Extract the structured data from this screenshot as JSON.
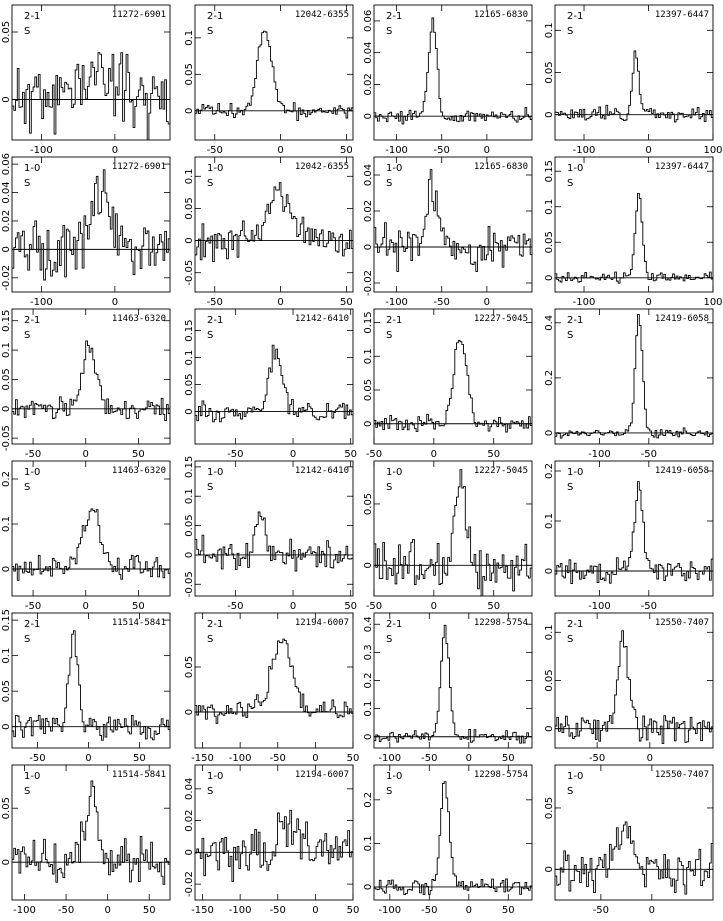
{
  "chart_data": [
    {
      "type": "line",
      "source": "11272-6901",
      "transition": "2-1",
      "flag": "S",
      "xlim": [
        -140,
        75
      ],
      "ylim": [
        -0.03,
        0.07
      ],
      "xticks": [
        -100,
        0
      ],
      "yticks": [
        0,
        0.05
      ],
      "peak": {
        "center": -20,
        "width": 60,
        "amp": 0.02
      },
      "noise": 0.018,
      "seed": 11
    },
    {
      "type": "line",
      "source": "12042-6355",
      "transition": "2-1",
      "flag": "S",
      "xlim": [
        -65,
        55
      ],
      "ylim": [
        -0.04,
        0.145
      ],
      "xticks": [
        -50,
        0,
        50
      ],
      "yticks": [
        0,
        0.05,
        0.1
      ],
      "peak": {
        "center": -12,
        "width": 12,
        "amp": 0.11
      },
      "noise": 0.007,
      "seed": 12
    },
    {
      "type": "line",
      "source": "12165-6830",
      "transition": "2-1",
      "flag": "S",
      "xlim": [
        -125,
        50
      ],
      "ylim": [
        -0.015,
        0.07
      ],
      "xticks": [
        -100,
        -50,
        0
      ],
      "yticks": [
        0,
        0.02,
        0.04,
        0.06
      ],
      "peak": {
        "center": -60,
        "width": 10,
        "amp": 0.06
      },
      "noise": 0.003,
      "seed": 13
    },
    {
      "type": "line",
      "source": "12397-6447",
      "transition": "2-1",
      "flag": "S",
      "xlim": [
        -145,
        100
      ],
      "ylim": [
        -0.03,
        0.13
      ],
      "xticks": [
        -100,
        0,
        100
      ],
      "yticks": [
        0,
        0.05,
        0.1
      ],
      "peak": {
        "center": -20,
        "width": 12,
        "amp": 0.07
      },
      "noise": 0.006,
      "seed": 14
    },
    {
      "type": "line",
      "source": "11272-6901",
      "transition": "1-0",
      "flag": "S",
      "xlim": [
        -140,
        75
      ],
      "ylim": [
        -0.03,
        0.065
      ],
      "xticks": [
        -100,
        0
      ],
      "yticks": [
        -0.02,
        0,
        0.02,
        0.04,
        0.06
      ],
      "peak": {
        "center": -20,
        "width": 30,
        "amp": 0.04
      },
      "noise": 0.013,
      "seed": 21
    },
    {
      "type": "line",
      "source": "12042-6355",
      "transition": "1-0",
      "flag": "S",
      "xlim": [
        -65,
        55
      ],
      "ylim": [
        -0.08,
        0.13
      ],
      "xticks": [
        -50,
        0,
        50
      ],
      "yticks": [
        -0.05,
        0,
        0.05,
        0.1
      ],
      "peak": {
        "center": 0,
        "width": 22,
        "amp": 0.07
      },
      "noise": 0.018,
      "seed": 22
    },
    {
      "type": "line",
      "source": "12165-6830",
      "transition": "1-0",
      "flag": "S",
      "xlim": [
        -125,
        50
      ],
      "ylim": [
        -0.025,
        0.05
      ],
      "xticks": [
        -100,
        -50,
        0
      ],
      "yticks": [
        -0.02,
        0,
        0.02,
        0.04
      ],
      "peak": {
        "center": -60,
        "width": 14,
        "amp": 0.033
      },
      "noise": 0.008,
      "seed": 23
    },
    {
      "type": "line",
      "source": "12397-6447",
      "transition": "1-0",
      "flag": "S",
      "xlim": [
        -145,
        100
      ],
      "ylim": [
        -0.02,
        0.17
      ],
      "xticks": [
        -100,
        0,
        100
      ],
      "yticks": [
        0,
        0.05,
        0.1,
        0.15
      ],
      "peak": {
        "center": -15,
        "width": 12,
        "amp": 0.12
      },
      "noise": 0.005,
      "seed": 24
    },
    {
      "type": "line",
      "source": "11463-6320",
      "transition": "2-1",
      "flag": "S",
      "xlim": [
        -70,
        80
      ],
      "ylim": [
        -0.06,
        0.17
      ],
      "xticks": [
        -50,
        0,
        50
      ],
      "yticks": [
        -0.05,
        0,
        0.05,
        0.1,
        0.15
      ],
      "peak": {
        "center": 3,
        "width": 14,
        "amp": 0.11
      },
      "noise": 0.012,
      "seed": 31
    },
    {
      "type": "line",
      "source": "12142-6410",
      "transition": "2-1",
      "flag": "S",
      "xlim": [
        -85,
        52
      ],
      "ylim": [
        -0.06,
        0.19
      ],
      "xticks": [
        -50,
        0,
        50
      ],
      "yticks": [
        0,
        0.05,
        0.1,
        0.15
      ],
      "peak": {
        "center": -15,
        "width": 12,
        "amp": 0.12
      },
      "noise": 0.012,
      "seed": 32
    },
    {
      "type": "line",
      "source": "12227-5045",
      "transition": "2-1",
      "flag": "S",
      "xlim": [
        -50,
        82
      ],
      "ylim": [
        -0.03,
        0.17
      ],
      "xticks": [
        -50,
        0,
        50
      ],
      "yticks": [
        0,
        0.05,
        0.1,
        0.15
      ],
      "peak": {
        "center": 22,
        "width": 12,
        "amp": 0.13
      },
      "noise": 0.008,
      "seed": 33
    },
    {
      "type": "line",
      "source": "12419-6058",
      "transition": "2-1",
      "flag": "S",
      "xlim": [
        -145,
        15
      ],
      "ylim": [
        -0.04,
        0.45
      ],
      "xticks": [
        -100,
        -50
      ],
      "yticks": [
        0,
        0.2,
        0.4
      ],
      "peak": {
        "center": -60,
        "width": 8,
        "amp": 0.42
      },
      "noise": 0.012,
      "seed": 34
    },
    {
      "type": "line",
      "source": "11463-6320",
      "transition": "1-0",
      "flag": "S",
      "xlim": [
        -70,
        80
      ],
      "ylim": [
        -0.06,
        0.24
      ],
      "xticks": [
        -50,
        0,
        50
      ],
      "yticks": [
        0,
        0.1,
        0.2
      ],
      "peak": {
        "center": 5,
        "width": 18,
        "amp": 0.13
      },
      "noise": 0.02,
      "seed": 41
    },
    {
      "type": "line",
      "source": "12142-6410",
      "transition": "1-0",
      "flag": "S",
      "xlim": [
        -85,
        52
      ],
      "ylim": [
        -0.07,
        0.16
      ],
      "xticks": [
        -50,
        0,
        50
      ],
      "yticks": [
        -0.05,
        0,
        0.05,
        0.1,
        0.15
      ],
      "peak": {
        "center": -28,
        "width": 10,
        "amp": 0.06
      },
      "noise": 0.018,
      "seed": 42
    },
    {
      "type": "line",
      "source": "12227-5045",
      "transition": "1-0",
      "flag": "S",
      "xlim": [
        -50,
        82
      ],
      "ylim": [
        -0.025,
        0.085
      ],
      "xticks": [
        -50,
        0,
        50
      ],
      "yticks": [
        0,
        0.05
      ],
      "peak": {
        "center": 22,
        "width": 12,
        "amp": 0.06
      },
      "noise": 0.014,
      "seed": 43
    },
    {
      "type": "line",
      "source": "12419-6058",
      "transition": "1-0",
      "flag": "S",
      "xlim": [
        -145,
        15
      ],
      "ylim": [
        -0.05,
        0.22
      ],
      "xticks": [
        -100,
        -50
      ],
      "yticks": [
        0,
        0.1,
        0.2
      ],
      "peak": {
        "center": -60,
        "width": 10,
        "amp": 0.16
      },
      "noise": 0.017,
      "seed": 44
    },
    {
      "type": "line",
      "source": "11514-5841",
      "transition": "2-1",
      "flag": "S",
      "xlim": [
        -75,
        80
      ],
      "ylim": [
        -0.03,
        0.16
      ],
      "xticks": [
        -50,
        0,
        50
      ],
      "yticks": [
        0,
        0.05,
        0.1,
        0.15
      ],
      "peak": {
        "center": -15,
        "width": 10,
        "amp": 0.12
      },
      "noise": 0.013,
      "seed": 51
    },
    {
      "type": "line",
      "source": "12194-6007",
      "transition": "2-1",
      "flag": "S",
      "xlim": [
        -160,
        50
      ],
      "ylim": [
        -0.04,
        0.11
      ],
      "xticks": [
        -150,
        -100,
        -50,
        0,
        50
      ],
      "yticks": [
        0,
        0.05
      ],
      "peak": {
        "center": -45,
        "width": 30,
        "amp": 0.08
      },
      "noise": 0.01,
      "seed": 52
    },
    {
      "type": "line",
      "source": "12298-5754",
      "transition": "2-1",
      "flag": "S",
      "xlim": [
        -120,
        80
      ],
      "ylim": [
        -0.04,
        0.44
      ],
      "xticks": [
        -100,
        -50,
        0,
        50
      ],
      "yticks": [
        0,
        0.1,
        0.2,
        0.3,
        0.4
      ],
      "peak": {
        "center": -30,
        "width": 12,
        "amp": 0.38
      },
      "noise": 0.015,
      "seed": 53
    },
    {
      "type": "line",
      "source": "12550-7407",
      "transition": "2-1",
      "flag": "S",
      "xlim": [
        -90,
        60
      ],
      "ylim": [
        -0.02,
        0.12
      ],
      "xticks": [
        -50,
        0
      ],
      "yticks": [
        0,
        0.05,
        0.1
      ],
      "peak": {
        "center": -25,
        "width": 12,
        "amp": 0.09
      },
      "noise": 0.01,
      "seed": 54
    },
    {
      "type": "line",
      "source": "11514-5841",
      "transition": "1-0",
      "flag": "S",
      "xlim": [
        -115,
        75
      ],
      "ylim": [
        -0.035,
        0.09
      ],
      "xticks": [
        -100,
        -50,
        0,
        50
      ],
      "yticks": [
        0,
        0.05
      ],
      "peak": {
        "center": -20,
        "width": 18,
        "amp": 0.055
      },
      "noise": 0.015,
      "seed": 61
    },
    {
      "type": "line",
      "source": "12194-6007",
      "transition": "1-0",
      "flag": "S",
      "xlim": [
        -160,
        50
      ],
      "ylim": [
        -0.03,
        0.055
      ],
      "xticks": [
        -150,
        -100,
        -50,
        0,
        50
      ],
      "yticks": [
        -0.02,
        0,
        0.02,
        0.04
      ],
      "peak": {
        "center": -35,
        "width": 25,
        "amp": 0.02
      },
      "noise": 0.01,
      "seed": 62
    },
    {
      "type": "line",
      "source": "12298-5754",
      "transition": "1-0",
      "flag": "S",
      "xlim": [
        -120,
        80
      ],
      "ylim": [
        -0.03,
        0.28
      ],
      "xticks": [
        -100,
        -50,
        0,
        50
      ],
      "yticks": [
        0,
        0.1,
        0.2
      ],
      "peak": {
        "center": -30,
        "width": 12,
        "amp": 0.24
      },
      "noise": 0.012,
      "seed": 63
    },
    {
      "type": "line",
      "source": "12550-7407",
      "transition": "1-0",
      "flag": "S",
      "xlim": [
        -95,
        60
      ],
      "ylim": [
        -0.025,
        0.085
      ],
      "xticks": [
        -50,
        0
      ],
      "yticks": [
        0,
        0.05
      ],
      "peak": {
        "center": -25,
        "width": 15,
        "amp": 0.045
      },
      "noise": 0.012,
      "seed": 64
    }
  ]
}
